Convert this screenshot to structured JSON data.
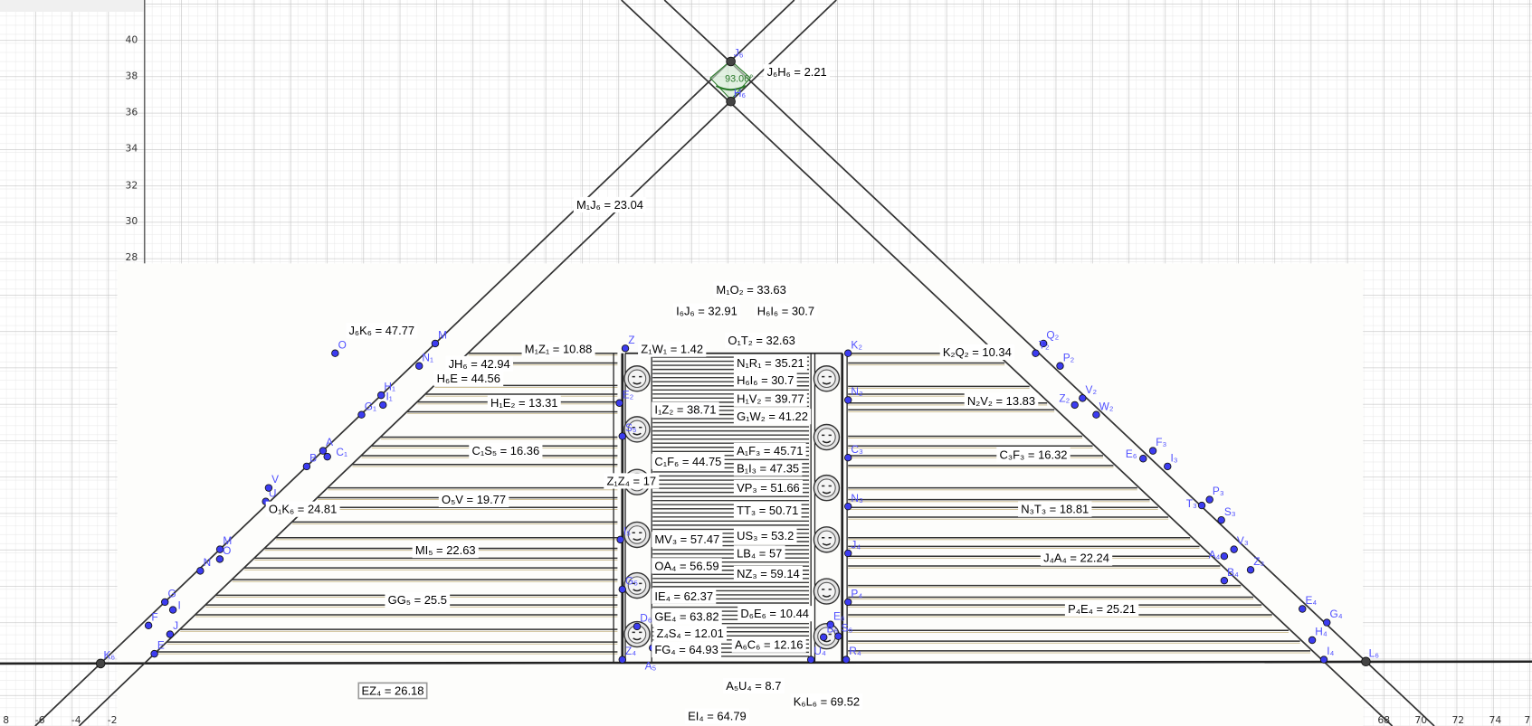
{
  "app": {
    "view": "Graphics"
  },
  "colors": {
    "point": "#3c3cf0",
    "point_label": "#5050ff",
    "line": "#333333",
    "angle": "#2a7a2a",
    "grid_major": "#c4c4c4",
    "grid_minor": "#e6e6e6"
  },
  "axes": {
    "y_ticks": [
      "40",
      "38",
      "36",
      "34",
      "32",
      "30",
      "28"
    ],
    "x_ticks_left": [
      "8",
      "-6",
      "-4",
      "-2"
    ],
    "x_ticks_right": [
      "68",
      "70",
      "72",
      "74",
      "7"
    ]
  },
  "angle": {
    "label": "93.06°"
  },
  "measurements": [
    {
      "text": "J₆H₆ = 2.21"
    },
    {
      "text": "M₁J₆ = 23.04"
    },
    {
      "text": "M₁O₂ = 33.63"
    },
    {
      "text": "I₆J₆ = 32.91"
    },
    {
      "text": "H₆I₆ = 30.7"
    },
    {
      "text": "J₆K₆ = 47.77"
    },
    {
      "text": "O₁T₂ = 32.63"
    },
    {
      "text": "M₁Z₁ = 10.88"
    },
    {
      "text": "Z₁W₁ = 1.42"
    },
    {
      "text": "JH₆ = 42.94"
    },
    {
      "text": "N₁R₁ = 35.21"
    },
    {
      "text": "H₆I₆ = 30.7"
    },
    {
      "text": "H₆E = 44.56"
    },
    {
      "text": "H₁E₂ = 13.31"
    },
    {
      "text": "I₁Z₂ = 38.71"
    },
    {
      "text": "H₁V₂ = 39.77"
    },
    {
      "text": "G₁W₂ = 41.22"
    },
    {
      "text": "C₁S₅ = 16.36"
    },
    {
      "text": "A₁F₃ = 45.71"
    },
    {
      "text": "C₁F₆ = 44.75"
    },
    {
      "text": "B₁I₃ = 47.35"
    },
    {
      "text": "Z₁Z₄ = 17"
    },
    {
      "text": "VP₃ = 51.66"
    },
    {
      "text": "O₅V = 19.77"
    },
    {
      "text": "O₁K₆ = 24.81"
    },
    {
      "text": "TT₃ = 50.71"
    },
    {
      "text": "LB₄ = 57"
    },
    {
      "text": "MV₃ = 57.47"
    },
    {
      "text": "US₃ = 53.2"
    },
    {
      "text": "MI₅ = 22.63"
    },
    {
      "text": "OA₄ = 56.59"
    },
    {
      "text": "NZ₃ = 59.14"
    },
    {
      "text": "IE₄ = 62.37"
    },
    {
      "text": "GG₅ = 25.5"
    },
    {
      "text": "GE₄ = 63.82"
    },
    {
      "text": "D₆E₆ = 10.44"
    },
    {
      "text": "Z₄S₄ = 12.01"
    },
    {
      "text": "FG₄ = 64.93"
    },
    {
      "text": "A₆C₆ = 12.16"
    },
    {
      "text": "A₅U₄ = 8.7"
    },
    {
      "text": "EZ₄ = 26.18"
    },
    {
      "text": "K₆L₆ = 69.52"
    },
    {
      "text": "EI₄ = 64.79"
    },
    {
      "text": "K₂Q₂ = 10.34"
    },
    {
      "text": "N₂V₂ = 13.83"
    },
    {
      "text": "C₃F₃ = 16.32"
    },
    {
      "text": "N₃T₃ = 18.81"
    },
    {
      "text": "J₄A₄ = 22.24"
    },
    {
      "text": "P₄E₄ = 25.21"
    }
  ],
  "points": [
    {
      "label": "J₆"
    },
    {
      "label": "H₆"
    },
    {
      "label": "K₆"
    },
    {
      "label": "L₆"
    },
    {
      "label": "M"
    },
    {
      "label": "O"
    },
    {
      "label": "N₁"
    },
    {
      "label": "H₁"
    },
    {
      "label": "I₁"
    },
    {
      "label": "G₁"
    },
    {
      "label": "A"
    },
    {
      "label": "C₁"
    },
    {
      "label": "B"
    },
    {
      "label": "U"
    },
    {
      "label": "V"
    },
    {
      "label": "M"
    },
    {
      "label": "O"
    },
    {
      "label": "N"
    },
    {
      "label": "G"
    },
    {
      "label": "I"
    },
    {
      "label": "F"
    },
    {
      "label": "J"
    },
    {
      "label": "E"
    },
    {
      "label": "Z"
    },
    {
      "label": "E₂"
    },
    {
      "label": "S₅"
    },
    {
      "label": "I₅"
    },
    {
      "label": "G₅"
    },
    {
      "label": "Z₄"
    },
    {
      "label": "D₆"
    },
    {
      "label": "A₅"
    },
    {
      "label": "K₂"
    },
    {
      "label": "N₂"
    },
    {
      "label": "C₃"
    },
    {
      "label": "N₃"
    },
    {
      "label": "J₄"
    },
    {
      "label": "P₄"
    },
    {
      "label": "R₄"
    },
    {
      "label": "U₄"
    },
    {
      "label": "E₆"
    },
    {
      "label": "B₆"
    },
    {
      "label": "S₆"
    },
    {
      "label": "Q₂"
    },
    {
      "label": "T₂"
    },
    {
      "label": "P₂"
    },
    {
      "label": "V₂"
    },
    {
      "label": "Z₂"
    },
    {
      "label": "W₂"
    },
    {
      "label": "F₃"
    },
    {
      "label": "E₆"
    },
    {
      "label": "I₃"
    },
    {
      "label": "P₃"
    },
    {
      "label": "T₃"
    },
    {
      "label": "S₃"
    },
    {
      "label": "V₃"
    },
    {
      "label": "A₄"
    },
    {
      "label": "Z₃"
    },
    {
      "label": "B₄"
    },
    {
      "label": "E₄"
    },
    {
      "label": "G₄"
    },
    {
      "label": "H₄"
    },
    {
      "label": "I₄"
    }
  ]
}
